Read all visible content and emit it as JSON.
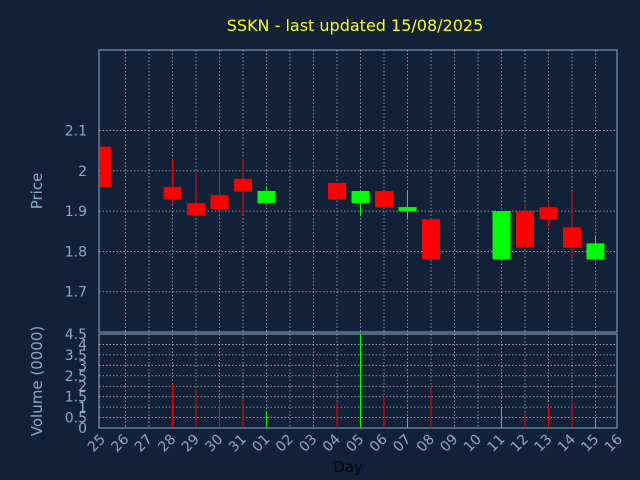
{
  "colors": {
    "background": "#112238",
    "title": "#ffff00",
    "text": "#8fa9c3",
    "grid": "#c8d2dc",
    "frame": "#8fa9c3",
    "up": "#00ff00",
    "down": "#ff0000"
  },
  "title": "SSKN - last updated 15/08/2025",
  "chart_data": {
    "type": "candlestick",
    "title": "SSKN - last updated 15/08/2025",
    "xlabel": "Day",
    "ylabel": "Price",
    "volume_ylabel": "Volume (0000)",
    "grid": true,
    "x_ticks": [
      "25",
      "26",
      "27",
      "28",
      "29",
      "30",
      "31",
      "01",
      "02",
      "03",
      "04",
      "05",
      "06",
      "07",
      "08",
      "09",
      "10",
      "11",
      "12",
      "13",
      "14",
      "15",
      "16"
    ],
    "price_ylim": [
      1.6,
      2.3
    ],
    "price_ticks": [
      1.7,
      1.8,
      1.9,
      2.0,
      2.1
    ],
    "price_tick_labels": [
      "1.7",
      "1.8",
      "1.9",
      "2",
      "2.1"
    ],
    "volume_ylim": [
      0,
      4.5
    ],
    "volume_ticks": [
      0,
      0.5,
      1,
      1.5,
      2,
      2.5,
      3,
      3.5,
      4
    ],
    "volume_tick_labels": [
      "0",
      "0.5",
      "1",
      "1.5",
      "2",
      "2.5",
      "3",
      "3.5",
      "4"
    ],
    "volume_top_label": "4.5",
    "candles": [
      {
        "day": "25",
        "open": 2.06,
        "close": 1.96,
        "high": 2.06,
        "low": 1.96,
        "volume": 0
      },
      {
        "day": "28",
        "open": 1.96,
        "close": 1.93,
        "high": 2.03,
        "low": 1.92,
        "volume": 2.1
      },
      {
        "day": "29",
        "open": 1.92,
        "close": 1.89,
        "high": 2.0,
        "low": 1.89,
        "volume": 1.8
      },
      {
        "day": "30",
        "open": 1.94,
        "close": 1.905,
        "high": 2.07,
        "low": 1.89,
        "volume": 1.2
      },
      {
        "day": "31",
        "open": 1.98,
        "close": 1.95,
        "high": 2.03,
        "low": 1.89,
        "volume": 1.4
      },
      {
        "day": "01",
        "open": 1.92,
        "close": 1.95,
        "high": 1.96,
        "low": 1.92,
        "volume": 0.8
      },
      {
        "day": "04",
        "open": 1.93,
        "close": 1.97,
        "high": 1.97,
        "low": 1.93,
        "volume": 1.2,
        "color": "down"
      },
      {
        "day": "05",
        "open": 1.92,
        "close": 1.95,
        "high": 1.95,
        "low": 1.89,
        "volume": 4.5
      },
      {
        "day": "06",
        "open": 1.95,
        "close": 1.91,
        "high": 1.95,
        "low": 1.91,
        "volume": 1.5
      },
      {
        "day": "07",
        "open": 1.9,
        "close": 1.91,
        "high": 1.95,
        "low": 1.88,
        "volume": 0.5
      },
      {
        "day": "08",
        "open": 1.88,
        "close": 1.78,
        "high": 1.88,
        "low": 1.78,
        "volume": 2.0
      },
      {
        "day": "11",
        "open": 1.78,
        "close": 1.9,
        "high": 1.9,
        "low": 1.78,
        "volume": 1.0
      },
      {
        "day": "12",
        "open": 1.9,
        "close": 1.81,
        "high": 1.92,
        "low": 1.81,
        "volume": 0.7
      },
      {
        "day": "13",
        "open": 1.91,
        "close": 1.88,
        "high": 1.92,
        "low": 1.86,
        "volume": 1.1
      },
      {
        "day": "14",
        "open": 1.86,
        "close": 1.81,
        "high": 1.95,
        "low": 1.78,
        "volume": 1.3
      },
      {
        "day": "15",
        "open": 1.78,
        "close": 1.82,
        "high": 1.84,
        "low": 1.78,
        "volume": 0.5
      }
    ]
  }
}
